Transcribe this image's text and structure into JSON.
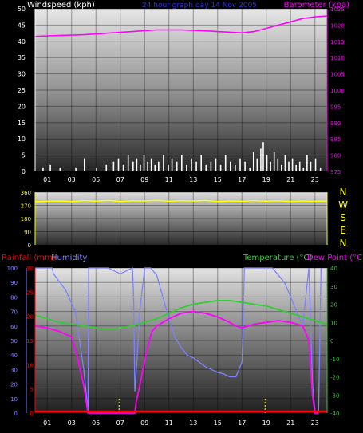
{
  "colors": {
    "background": "#000000",
    "wind": "#ffffff",
    "barometer": "#ff00ff",
    "direction": "#ffff00",
    "direction_labels": "#ffff00",
    "axis_left": "#ffffff",
    "rainfall": "#ff0000",
    "humidity": "#8080ff",
    "temperature": "#33cc33",
    "dewpoint": "#ff00ff",
    "title": "#3333cc"
  },
  "chart_data": [
    {
      "type": "bar",
      "title": "24 hour graph day 14 Nov 2005",
      "ylabel": "Windspeed (kph)",
      "ylim": [
        0,
        50
      ],
      "yticks": [
        "0",
        "5",
        "10",
        "15",
        "20",
        "25",
        "30",
        "35",
        "40",
        "45",
        "50"
      ],
      "y2label": "Barometer (kpa)",
      "y2lim": [
        975,
        1025
      ],
      "y2ticks": [
        "975",
        "980",
        "985",
        "990",
        "995",
        "1000",
        "1005",
        "1010",
        "1015",
        "1020",
        "1025"
      ],
      "xticks": [
        "01",
        "03",
        "05",
        "07",
        "09",
        "11",
        "13",
        "15",
        "17",
        "19",
        "21",
        "23"
      ],
      "xlim": [
        0,
        24
      ],
      "series": [
        {
          "name": "Windspeed",
          "kind": "bar",
          "x": [
            0.6,
            1.2,
            2.0,
            3.3,
            4.0,
            5.0,
            5.8,
            6.4,
            6.8,
            7.2,
            7.6,
            8.0,
            8.3,
            8.6,
            8.9,
            9.2,
            9.5,
            9.8,
            10.1,
            10.5,
            10.9,
            11.2,
            11.6,
            12.0,
            12.4,
            12.8,
            13.2,
            13.6,
            14.0,
            14.4,
            14.8,
            15.2,
            15.6,
            16.0,
            16.4,
            16.8,
            17.2,
            17.6,
            17.9,
            18.2,
            18.5,
            18.7,
            19.0,
            19.3,
            19.6,
            19.9,
            20.2,
            20.5,
            20.8,
            21.1,
            21.4,
            21.7,
            22.0,
            22.3,
            22.6,
            23.0,
            23.4
          ],
          "values": [
            1,
            2,
            1,
            1,
            4,
            1,
            2,
            3,
            4,
            2,
            5,
            3,
            4,
            2,
            5,
            3,
            4,
            2,
            3,
            5,
            2,
            4,
            3,
            5,
            2,
            4,
            3,
            5,
            2,
            3,
            4,
            2,
            5,
            3,
            2,
            4,
            3,
            1,
            6,
            4,
            7,
            9,
            5,
            3,
            6,
            4,
            2,
            5,
            3,
            4,
            2,
            3,
            1,
            5,
            3,
            4,
            1
          ]
        },
        {
          "name": "Barometer",
          "kind": "line",
          "x": [
            0,
            2,
            4,
            6,
            8,
            10,
            12,
            14,
            16,
            17,
            18,
            19,
            20,
            21,
            22,
            23,
            24
          ],
          "values": [
            1016.5,
            1016.8,
            1017,
            1017.5,
            1018,
            1018.5,
            1018.5,
            1018.2,
            1017.8,
            1017.6,
            1018,
            1019,
            1020,
            1021,
            1022,
            1022.5,
            1022.8
          ]
        }
      ]
    },
    {
      "type": "line",
      "ylim": [
        0,
        360
      ],
      "yticks": [
        "0",
        "90",
        "180",
        "270",
        "360"
      ],
      "direction_labels": [
        "N",
        "W",
        "S",
        "E",
        "N"
      ],
      "xlim": [
        0,
        24
      ],
      "series": [
        {
          "name": "Wind direction",
          "x": [
            0,
            1,
            2,
            3,
            4,
            5,
            6,
            7,
            8,
            9,
            10,
            11,
            12,
            13,
            14,
            15,
            16,
            17,
            18,
            19,
            20,
            21,
            22,
            23,
            24
          ],
          "values": [
            295,
            298,
            300,
            296,
            302,
            299,
            303,
            297,
            301,
            300,
            304,
            298,
            302,
            300,
            303,
            296,
            300,
            298,
            302,
            299,
            301,
            297,
            300,
            298,
            300
          ]
        }
      ]
    },
    {
      "type": "line",
      "legend": [
        "Rainfall (mm)",
        "Humidity",
        "Temperature (°C)",
        "Dew Point (°C)"
      ],
      "ylim_humidity": [
        0,
        100
      ],
      "yticks_humidity": [
        "0",
        "10",
        "20",
        "30",
        "40",
        "50",
        "60",
        "70",
        "80",
        "90",
        "100"
      ],
      "ylim_rainfall": [
        0,
        30
      ],
      "yticks_rainfall": [
        "0",
        "5",
        "10",
        "15",
        "20",
        "25",
        "30"
      ],
      "ylim_temperature": [
        -40,
        40
      ],
      "yticks_temperature": [
        "-40",
        "-30",
        "-20",
        "-10",
        "0",
        "10",
        "20",
        "30",
        "40"
      ],
      "xticks": [
        "01",
        "03",
        "05",
        "07",
        "09",
        "11",
        "13",
        "15",
        "17",
        "19",
        "21",
        "23"
      ],
      "xlim": [
        0,
        24
      ],
      "markers_x": [
        6.9,
        18.9
      ],
      "series": [
        {
          "name": "Rainfall (mm)",
          "x": [
            0,
            24
          ],
          "values": [
            0,
            0
          ]
        },
        {
          "name": "Humidity",
          "x": [
            0,
            1.4,
            1.5,
            2.5,
            3.3,
            4.0,
            4.3,
            4.35,
            4.4,
            4.45,
            5.0,
            6.0,
            7.0,
            8.0,
            8.1,
            8.2,
            8.4,
            8.6,
            9.0,
            9.5,
            10.0,
            10.5,
            11.0,
            11.5,
            12.0,
            12.5,
            13.0,
            13.5,
            14.0,
            14.5,
            15.0,
            15.5,
            16.0,
            16.5,
            17.0,
            17.2,
            17.5,
            18.5,
            19.5,
            20.0,
            20.5,
            21.0,
            21.5,
            22.0,
            22.5,
            22.8,
            23.0,
            23.3,
            23.5
          ],
          "values": [
            100,
            100,
            96,
            85,
            70,
            30,
            5,
            0,
            100,
            100,
            100,
            100,
            96,
            100,
            80,
            15,
            40,
            70,
            100,
            100,
            95,
            80,
            65,
            52,
            45,
            40,
            38,
            35,
            32,
            30,
            28,
            27,
            25,
            25,
            35,
            100,
            100,
            100,
            100,
            95,
            90,
            80,
            70,
            60,
            100,
            20,
            1,
            1,
            100
          ]
        },
        {
          "name": "Temperature (°C)",
          "x": [
            0,
            1,
            2,
            3,
            4,
            5,
            6,
            7,
            8,
            9,
            10,
            11,
            12,
            13,
            14,
            15,
            16,
            17,
            18,
            19,
            20,
            21,
            22,
            23,
            24
          ],
          "values": [
            14,
            12,
            10,
            9,
            8,
            7,
            6,
            7,
            8,
            10,
            12,
            15,
            18,
            20,
            21,
            22,
            22,
            21,
            20,
            19,
            17,
            15,
            13,
            11,
            9
          ]
        },
        {
          "name": "Dew Point (°C)",
          "x": [
            0,
            1,
            2,
            3,
            3.5,
            4.0,
            4.2,
            4.3,
            4.35,
            4.4,
            8.2,
            8.3,
            8.5,
            8.8,
            9.2,
            9.6,
            10,
            11,
            12,
            13,
            14,
            15,
            16,
            16.5,
            17,
            18,
            19,
            20,
            21,
            22,
            22.5,
            22.8,
            23.0,
            23.3
          ],
          "values": [
            8,
            7,
            5,
            2,
            -10,
            -25,
            -34,
            -38,
            -40,
            -40,
            -40,
            -34,
            -28,
            -18,
            -5,
            5,
            8,
            12,
            15,
            16,
            15,
            13,
            10,
            8,
            7,
            9,
            10,
            11,
            10,
            8,
            0,
            -30,
            -40,
            -40
          ]
        }
      ]
    }
  ]
}
